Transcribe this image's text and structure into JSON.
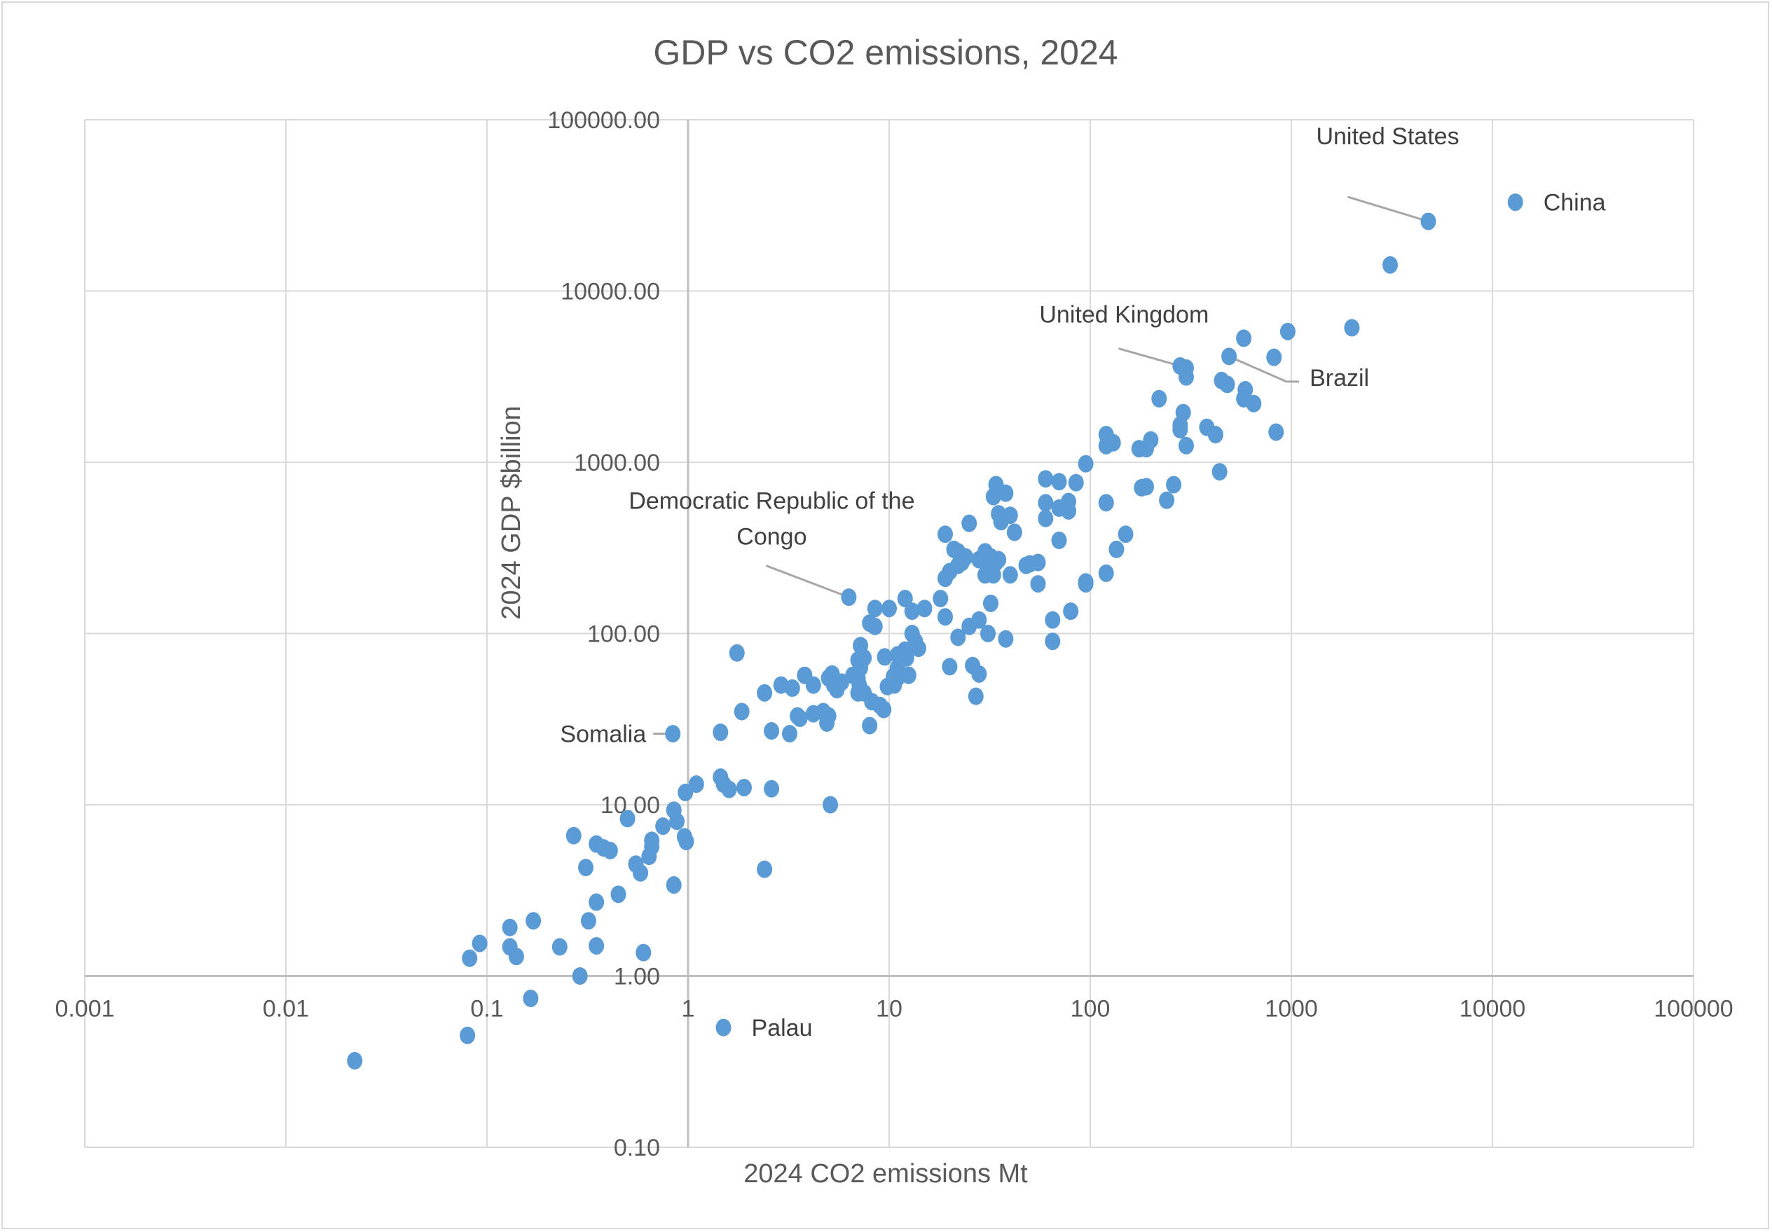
{
  "chart_data": {
    "type": "scatter",
    "title": "GDP vs CO2 emissions, 2024",
    "xlabel": "2024 CO2 emissions Mt",
    "ylabel": "2024 GDP $billion",
    "xscale": "log",
    "yscale": "log",
    "xlim": [
      0.001,
      100000
    ],
    "ylim": [
      0.1,
      100000
    ],
    "x_ticks": [
      "0.001",
      "0.01",
      "0.1",
      "1",
      "10",
      "100",
      "1000",
      "10000",
      "100000"
    ],
    "y_ticks": [
      "0.10",
      "1.00",
      "10.00",
      "100.00",
      "1000.00",
      "10000.00",
      "100000.00"
    ],
    "grid": true,
    "legend": "none",
    "marker_color": "#5b9bd5",
    "series": [
      {
        "name": "Countries",
        "points": [
          {
            "x": 13000,
            "y": 33000,
            "label": "China"
          },
          {
            "x": 4800,
            "y": 25500,
            "label": "United States"
          },
          {
            "x": 3100,
            "y": 14200
          },
          {
            "x": 2000,
            "y": 6100
          },
          {
            "x": 960,
            "y": 5800
          },
          {
            "x": 820,
            "y": 4100
          },
          {
            "x": 580,
            "y": 5300
          },
          {
            "x": 280,
            "y": 3650,
            "label": "United Kingdom"
          },
          {
            "x": 300,
            "y": 3550
          },
          {
            "x": 300,
            "y": 3150
          },
          {
            "x": 490,
            "y": 4150,
            "label": "Brazil"
          },
          {
            "x": 450,
            "y": 3000
          },
          {
            "x": 480,
            "y": 2850
          },
          {
            "x": 590,
            "y": 2650
          },
          {
            "x": 580,
            "y": 2350
          },
          {
            "x": 650,
            "y": 2200
          },
          {
            "x": 840,
            "y": 1500
          },
          {
            "x": 220,
            "y": 2350
          },
          {
            "x": 120,
            "y": 1450
          },
          {
            "x": 130,
            "y": 1300
          },
          {
            "x": 120,
            "y": 1250
          },
          {
            "x": 200,
            "y": 1350
          },
          {
            "x": 175,
            "y": 1200
          },
          {
            "x": 190,
            "y": 1200
          },
          {
            "x": 290,
            "y": 1950
          },
          {
            "x": 280,
            "y": 1650
          },
          {
            "x": 280,
            "y": 1550
          },
          {
            "x": 300,
            "y": 1250
          },
          {
            "x": 380,
            "y": 1600
          },
          {
            "x": 420,
            "y": 1450
          },
          {
            "x": 440,
            "y": 880
          },
          {
            "x": 95,
            "y": 980
          },
          {
            "x": 85,
            "y": 760
          },
          {
            "x": 70,
            "y": 770
          },
          {
            "x": 60,
            "y": 800
          },
          {
            "x": 60,
            "y": 580
          },
          {
            "x": 60,
            "y": 470
          },
          {
            "x": 70,
            "y": 540
          },
          {
            "x": 78,
            "y": 520
          },
          {
            "x": 78,
            "y": 590
          },
          {
            "x": 120,
            "y": 580
          },
          {
            "x": 190,
            "y": 720
          },
          {
            "x": 180,
            "y": 710
          },
          {
            "x": 260,
            "y": 740
          },
          {
            "x": 240,
            "y": 600
          },
          {
            "x": 150,
            "y": 380
          },
          {
            "x": 135,
            "y": 310
          },
          {
            "x": 70,
            "y": 350
          },
          {
            "x": 55,
            "y": 260
          },
          {
            "x": 50,
            "y": 255
          },
          {
            "x": 55,
            "y": 195
          },
          {
            "x": 95,
            "y": 195
          },
          {
            "x": 95,
            "y": 200
          },
          {
            "x": 120,
            "y": 225
          },
          {
            "x": 80,
            "y": 135
          },
          {
            "x": 65,
            "y": 120
          },
          {
            "x": 65,
            "y": 90
          },
          {
            "x": 34,
            "y": 740
          },
          {
            "x": 33,
            "y": 630
          },
          {
            "x": 38,
            "y": 660
          },
          {
            "x": 35,
            "y": 500
          },
          {
            "x": 36,
            "y": 450
          },
          {
            "x": 40,
            "y": 490
          },
          {
            "x": 42,
            "y": 390
          },
          {
            "x": 25,
            "y": 440
          },
          {
            "x": 19,
            "y": 380
          },
          {
            "x": 21,
            "y": 310
          },
          {
            "x": 22,
            "y": 300
          },
          {
            "x": 24,
            "y": 280
          },
          {
            "x": 23,
            "y": 260
          },
          {
            "x": 22,
            "y": 250
          },
          {
            "x": 20,
            "y": 230
          },
          {
            "x": 19,
            "y": 210
          },
          {
            "x": 30,
            "y": 300
          },
          {
            "x": 32,
            "y": 280
          },
          {
            "x": 31,
            "y": 270
          },
          {
            "x": 35,
            "y": 270
          },
          {
            "x": 34,
            "y": 260
          },
          {
            "x": 28,
            "y": 270
          },
          {
            "x": 30,
            "y": 220
          },
          {
            "x": 33,
            "y": 220
          },
          {
            "x": 40,
            "y": 220
          },
          {
            "x": 48,
            "y": 250
          },
          {
            "x": 18,
            "y": 160
          },
          {
            "x": 15,
            "y": 140
          },
          {
            "x": 12,
            "y": 160
          },
          {
            "x": 13,
            "y": 135
          },
          {
            "x": 10,
            "y": 140
          },
          {
            "x": 8.5,
            "y": 140
          },
          {
            "x": 8.5,
            "y": 110
          },
          {
            "x": 8,
            "y": 115
          },
          {
            "x": 19,
            "y": 125
          },
          {
            "x": 25,
            "y": 110
          },
          {
            "x": 22,
            "y": 95
          },
          {
            "x": 28,
            "y": 120
          },
          {
            "x": 32,
            "y": 150
          },
          {
            "x": 31,
            "y": 100
          },
          {
            "x": 38,
            "y": 93
          },
          {
            "x": 6.3,
            "y": 163,
            "label": "Democratic Republic of the Congo"
          },
          {
            "x": 7.2,
            "y": 85
          },
          {
            "x": 7.5,
            "y": 72
          },
          {
            "x": 7,
            "y": 70
          },
          {
            "x": 7.2,
            "y": 63
          },
          {
            "x": 6.6,
            "y": 57
          },
          {
            "x": 7,
            "y": 55
          },
          {
            "x": 7.1,
            "y": 50
          },
          {
            "x": 7.0,
            "y": 45
          },
          {
            "x": 7.5,
            "y": 45
          },
          {
            "x": 8.2,
            "y": 40
          },
          {
            "x": 9.0,
            "y": 38
          },
          {
            "x": 9.4,
            "y": 36
          },
          {
            "x": 8,
            "y": 29
          },
          {
            "x": 9.5,
            "y": 73
          },
          {
            "x": 11,
            "y": 75
          },
          {
            "x": 12,
            "y": 80
          },
          {
            "x": 12.2,
            "y": 72
          },
          {
            "x": 13,
            "y": 100
          },
          {
            "x": 13.5,
            "y": 90
          },
          {
            "x": 14,
            "y": 82
          },
          {
            "x": 11,
            "y": 63
          },
          {
            "x": 10.5,
            "y": 56
          },
          {
            "x": 11,
            "y": 55
          },
          {
            "x": 12.5,
            "y": 57
          },
          {
            "x": 9.8,
            "y": 49
          },
          {
            "x": 10.6,
            "y": 50
          },
          {
            "x": 20,
            "y": 64
          },
          {
            "x": 26,
            "y": 65
          },
          {
            "x": 28,
            "y": 58
          },
          {
            "x": 27,
            "y": 43
          },
          {
            "x": 5.2,
            "y": 58
          },
          {
            "x": 5.0,
            "y": 55
          },
          {
            "x": 5.3,
            "y": 50
          },
          {
            "x": 5.5,
            "y": 47
          },
          {
            "x": 5.8,
            "y": 52
          },
          {
            "x": 4.2,
            "y": 50
          },
          {
            "x": 3.8,
            "y": 57
          },
          {
            "x": 3.3,
            "y": 48
          },
          {
            "x": 2.9,
            "y": 50
          },
          {
            "x": 2.4,
            "y": 45
          },
          {
            "x": 1.75,
            "y": 77
          },
          {
            "x": 1.85,
            "y": 35
          },
          {
            "x": 2.6,
            "y": 27
          },
          {
            "x": 3.2,
            "y": 26
          },
          {
            "x": 3.5,
            "y": 33
          },
          {
            "x": 3.6,
            "y": 32
          },
          {
            "x": 4.2,
            "y": 34
          },
          {
            "x": 4.7,
            "y": 35
          },
          {
            "x": 5.0,
            "y": 33
          },
          {
            "x": 4.9,
            "y": 30
          },
          {
            "x": 1.45,
            "y": 26.5
          },
          {
            "x": 0.84,
            "y": 26,
            "label": "Somalia"
          },
          {
            "x": 1.45,
            "y": 14.5
          },
          {
            "x": 1.5,
            "y": 13.2
          },
          {
            "x": 1.6,
            "y": 12.3
          },
          {
            "x": 1.9,
            "y": 12.6
          },
          {
            "x": 2.6,
            "y": 12.4
          },
          {
            "x": 1.1,
            "y": 13.2
          },
          {
            "x": 0.97,
            "y": 11.8
          },
          {
            "x": 5.1,
            "y": 10
          },
          {
            "x": 2.4,
            "y": 4.2
          },
          {
            "x": 0.85,
            "y": 9.3
          },
          {
            "x": 0.88,
            "y": 8.0
          },
          {
            "x": 0.75,
            "y": 7.5
          },
          {
            "x": 0.96,
            "y": 6.5
          },
          {
            "x": 0.98,
            "y": 6.1
          },
          {
            "x": 0.66,
            "y": 6.2
          },
          {
            "x": 0.66,
            "y": 5.7
          },
          {
            "x": 0.64,
            "y": 5.0
          },
          {
            "x": 0.5,
            "y": 8.3
          },
          {
            "x": 0.55,
            "y": 4.5
          },
          {
            "x": 0.58,
            "y": 4.0
          },
          {
            "x": 0.85,
            "y": 3.4
          },
          {
            "x": 0.27,
            "y": 6.6
          },
          {
            "x": 0.35,
            "y": 5.9
          },
          {
            "x": 0.38,
            "y": 5.6
          },
          {
            "x": 0.41,
            "y": 5.4
          },
          {
            "x": 0.31,
            "y": 4.3
          },
          {
            "x": 0.45,
            "y": 3.0
          },
          {
            "x": 0.35,
            "y": 2.7
          },
          {
            "x": 0.32,
            "y": 2.1
          },
          {
            "x": 0.35,
            "y": 1.5
          },
          {
            "x": 0.6,
            "y": 1.37
          },
          {
            "x": 0.29,
            "y": 1.0
          },
          {
            "x": 0.17,
            "y": 2.1
          },
          {
            "x": 0.13,
            "y": 1.92
          },
          {
            "x": 0.13,
            "y": 1.48
          },
          {
            "x": 0.14,
            "y": 1.3
          },
          {
            "x": 0.23,
            "y": 1.48
          },
          {
            "x": 0.092,
            "y": 1.55
          },
          {
            "x": 0.082,
            "y": 1.27
          },
          {
            "x": 0.165,
            "y": 0.74
          },
          {
            "x": 0.08,
            "y": 0.45
          },
          {
            "x": 0.022,
            "y": 0.32
          },
          {
            "x": 1.5,
            "y": 0.5,
            "label": "Palau"
          }
        ]
      }
    ],
    "annotations": [
      {
        "text": "China",
        "target": "China"
      },
      {
        "text": "United States",
        "target": "United States"
      },
      {
        "text": "United Kingdom",
        "target": "United Kingdom"
      },
      {
        "text": "Brazil",
        "target": "Brazil"
      },
      {
        "text": "Democratic Republic of the",
        "target": "Democratic Republic of the Congo",
        "line": 1
      },
      {
        "text": "Congo",
        "target": "Democratic Republic of the Congo",
        "line": 2
      },
      {
        "text": "Somalia",
        "target": "Somalia"
      },
      {
        "text": "Palau",
        "target": "Palau"
      }
    ]
  }
}
